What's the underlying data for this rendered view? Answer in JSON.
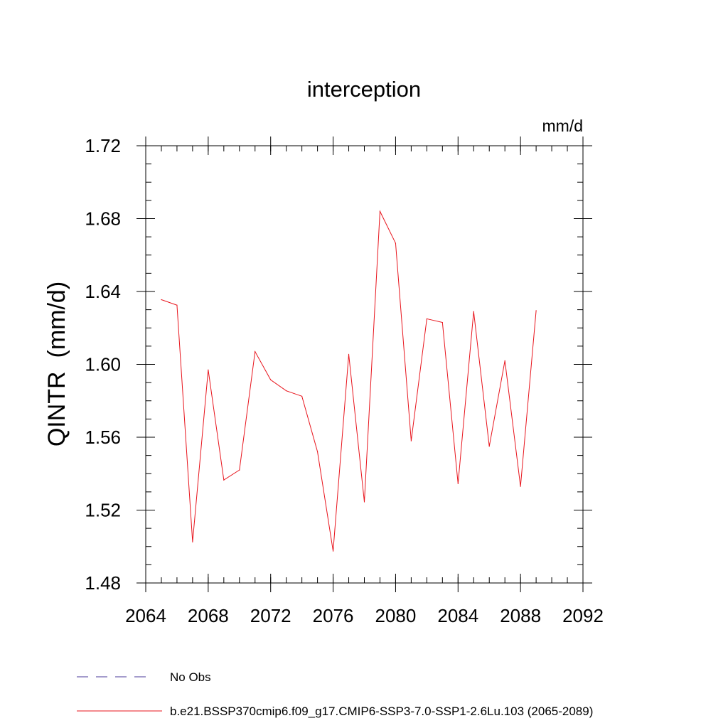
{
  "chart_data": {
    "type": "line",
    "title": "interception",
    "units_label": "mm/d",
    "ylabel": "QINTR  (mm/d)",
    "xlabel": "",
    "xlim": [
      2064,
      2092
    ],
    "ylim": [
      1.48,
      1.72
    ],
    "x_ticks": [
      2064,
      2068,
      2072,
      2076,
      2080,
      2084,
      2088,
      2092
    ],
    "y_ticks": [
      1.48,
      1.52,
      1.56,
      1.6,
      1.64,
      1.68,
      1.72
    ],
    "x_tick_labels": [
      "2064",
      "2068",
      "2072",
      "2076",
      "2080",
      "2084",
      "2088",
      "2092"
    ],
    "y_tick_labels": [
      "1.48",
      "1.52",
      "1.56",
      "1.60",
      "1.64",
      "1.68",
      "1.72"
    ],
    "grid": false,
    "series": [
      {
        "name": "b.e21.BSSP370cmip6.f09_g17.CMIP6-SSP3-7.0-SSP1-2.6Lu.103 (2065-2089)",
        "color": "#e8141c",
        "style": "solid",
        "x": [
          2065,
          2066,
          2067,
          2068,
          2069,
          2070,
          2071,
          2072,
          2073,
          2074,
          2075,
          2076,
          2077,
          2078,
          2079,
          2080,
          2081,
          2082,
          2083,
          2084,
          2085,
          2086,
          2087,
          2088,
          2089
        ],
        "values": [
          1.6355,
          1.6325,
          1.5025,
          1.597,
          1.5365,
          1.542,
          1.607,
          1.5915,
          1.5855,
          1.5825,
          1.552,
          1.4975,
          1.6055,
          1.5245,
          1.684,
          1.6665,
          1.558,
          1.625,
          1.623,
          1.5345,
          1.629,
          1.555,
          1.602,
          1.533,
          1.6295
        ]
      }
    ],
    "legend": {
      "placement": "bottom-left",
      "entries": [
        {
          "label": "No Obs",
          "color": "#4a3a9a",
          "style": "dashed"
        },
        {
          "label": "b.e21.BSSP370cmip6.f09_g17.CMIP6-SSP3-7.0-SSP1-2.6Lu.103 (2065-2089)",
          "color": "#e8141c",
          "style": "solid"
        }
      ]
    }
  }
}
